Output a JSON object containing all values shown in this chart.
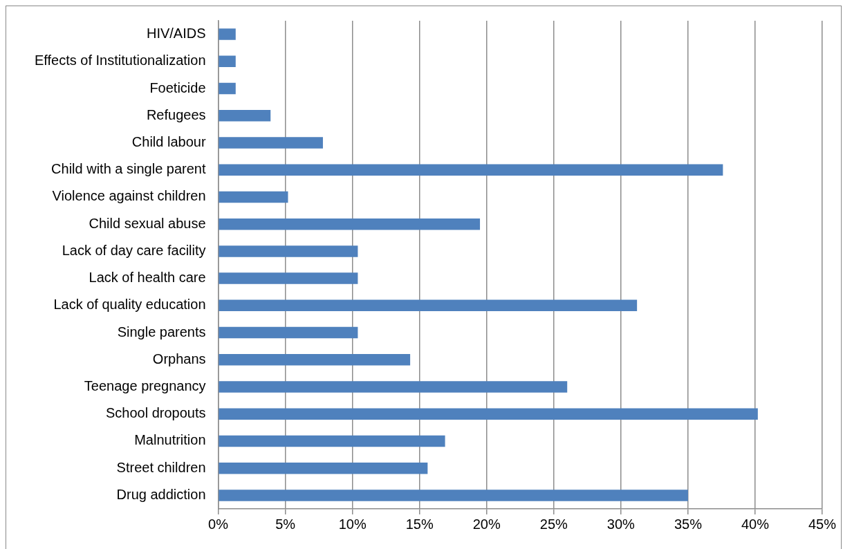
{
  "chart_data": {
    "type": "bar",
    "orientation": "horizontal",
    "categories": [
      "HIV/AIDS",
      "Effects of Institutionalization",
      "Foeticide",
      "Refugees",
      "Child labour",
      "Child with a single parent",
      "Violence against children",
      "Child sexual abuse",
      "Lack of day care facility",
      "Lack of health care",
      "Lack of quality education",
      "Single parents",
      "Orphans",
      "Teenage pregnancy",
      "School dropouts",
      "Malnutrition",
      "Street children",
      "Drug addiction"
    ],
    "values": [
      1.3,
      1.3,
      1.3,
      3.9,
      7.8,
      37.6,
      5.2,
      19.5,
      10.4,
      10.4,
      31.2,
      10.4,
      14.3,
      26.0,
      40.2,
      16.9,
      15.6,
      35.0
    ],
    "color": "#4f81bd",
    "xlim": [
      0,
      45
    ],
    "xticks": [
      {
        "value": 0,
        "label": "0%"
      },
      {
        "value": 5,
        "label": "5%"
      },
      {
        "value": 10,
        "label": "10%"
      },
      {
        "value": 15,
        "label": "15%"
      },
      {
        "value": 20,
        "label": "20%"
      },
      {
        "value": 25,
        "label": "25%"
      },
      {
        "value": 30,
        "label": "30%"
      },
      {
        "value": 35,
        "label": "35%"
      },
      {
        "value": 40,
        "label": "40%"
      },
      {
        "value": 45,
        "label": "45%"
      }
    ],
    "grid": "x",
    "legend": false
  }
}
